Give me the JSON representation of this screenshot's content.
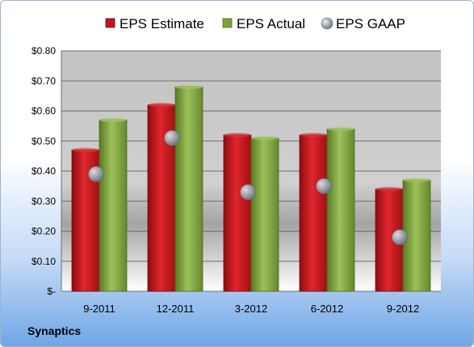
{
  "company": "Synaptics",
  "chart_data": {
    "type": "bar",
    "categories": [
      "9-2011",
      "12-2011",
      "3-2012",
      "6-2012",
      "9-2012"
    ],
    "series": [
      {
        "name": "EPS Estimate",
        "values": [
          0.47,
          0.62,
          0.52,
          0.52,
          0.34
        ],
        "color": "#c0151b",
        "kind": "bar"
      },
      {
        "name": "EPS Actual",
        "values": [
          0.57,
          0.68,
          0.51,
          0.54,
          0.37
        ],
        "color": "#7aa33a",
        "kind": "bar"
      },
      {
        "name": "EPS GAAP",
        "values": [
          0.39,
          0.51,
          0.33,
          0.35,
          0.18
        ],
        "color": "#8c9aa8",
        "kind": "marker"
      }
    ],
    "ylim": [
      0,
      0.8
    ],
    "yticks": [
      0,
      0.1,
      0.2,
      0.3,
      0.4,
      0.5,
      0.6,
      0.7,
      0.8
    ],
    "ytick_labels": [
      "$-",
      "$0.10",
      "$0.20",
      "$0.30",
      "$0.40",
      "$0.50",
      "$0.60",
      "$0.70",
      "$0.80"
    ],
    "grid": true,
    "legend_position": "top"
  }
}
